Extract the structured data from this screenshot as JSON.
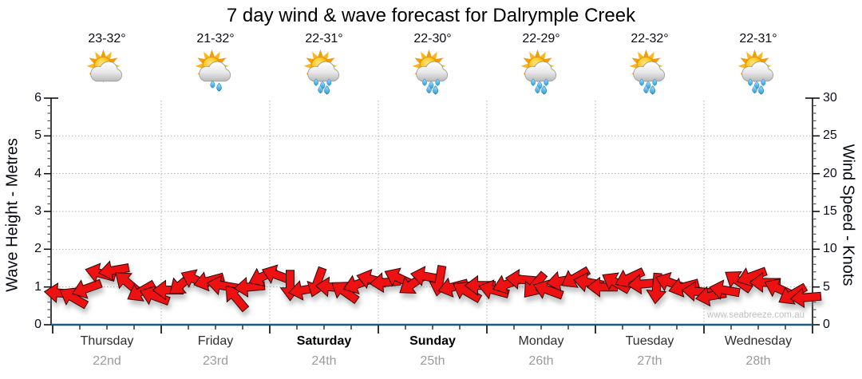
{
  "title": "7 day wind & wave forecast for Dalrymple Creek",
  "watermark": "www.seabreeze.com.au",
  "axes": {
    "left_label": "Wave Height - Metres",
    "right_label": "Wind Speed - Knots",
    "left_ticks": [
      0,
      1,
      2,
      3,
      4,
      5,
      6
    ],
    "right_ticks": [
      0,
      5,
      10,
      15,
      20,
      25,
      30
    ]
  },
  "days": [
    {
      "name": "Thursday",
      "date": "22nd",
      "temp": "23-32°",
      "icon": "partly-cloudy",
      "weekend": false
    },
    {
      "name": "Friday",
      "date": "23rd",
      "temp": "21-32°",
      "icon": "showers",
      "weekend": false
    },
    {
      "name": "Saturday",
      "date": "24th",
      "temp": "22-31°",
      "icon": "rain",
      "weekend": true
    },
    {
      "name": "Sunday",
      "date": "25th",
      "temp": "22-30°",
      "icon": "rain",
      "weekend": true
    },
    {
      "name": "Monday",
      "date": "26th",
      "temp": "22-29°",
      "icon": "rain",
      "weekend": false
    },
    {
      "name": "Tuesday",
      "date": "27th",
      "temp": "22-32°",
      "icon": "rain",
      "weekend": false
    },
    {
      "name": "Wednesday",
      "date": "28th",
      "temp": "22-31°",
      "icon": "rain",
      "weekend": false
    }
  ],
  "chart_data": {
    "type": "scatter",
    "subtype": "wind-direction-arrows",
    "title": "7 day wind & wave forecast for Dalrymple Creek",
    "categories": [
      "Thursday 22nd",
      "Friday 23rd",
      "Saturday 24th",
      "Sunday 25th",
      "Monday 26th",
      "Tuesday 27th",
      "Wednesday 28th"
    ],
    "points_per_day": 8,
    "ylabel_left": "Wave Height - Metres",
    "ylabel_right": "Wind Speed - Knots",
    "ylim_left_metres": [
      0,
      6
    ],
    "ylim_right_knots": [
      0,
      30
    ],
    "grid": "dotted, horizontal at 1-5 m and vertical at day boundaries",
    "legend": "none",
    "series": [
      {
        "name": "Wind speed (knots)",
        "values": [
          4.2,
          3.6,
          4.8,
          6.8,
          7.2,
          5.6,
          4.4,
          3.8,
          4.6,
          5.4,
          6.0,
          5.8,
          5.2,
          3.6,
          5.0,
          6.4,
          6.6,
          5.2,
          4.6,
          5.6,
          5.0,
          4.4,
          5.4,
          6.0,
          5.6,
          6.2,
          5.4,
          6.4,
          5.8,
          5.0,
          4.4,
          5.2,
          4.6,
          5.4,
          6.0,
          5.2,
          4.6,
          5.8,
          6.2,
          5.6,
          5.0,
          5.6,
          6.2,
          5.4,
          4.8,
          5.6,
          5.0,
          4.4,
          3.8,
          4.6,
          5.8,
          6.4,
          5.6,
          4.8,
          4.0,
          3.6
        ]
      },
      {
        "name": "Wind direction (screen deg, 0=east)",
        "values": [
          185,
          210,
          160,
          195,
          170,
          220,
          150,
          200,
          180,
          140,
          205,
          165,
          190,
          230,
          175,
          155,
          200,
          90,
          170,
          110,
          185,
          215,
          160,
          195,
          175,
          205,
          145,
          190,
          100,
          165,
          210,
          180,
          195,
          160,
          185,
          130,
          200,
          170,
          150,
          190,
          180,
          210,
          155,
          175,
          95,
          200,
          165,
          185,
          170,
          190,
          215,
          160,
          180,
          205,
          150,
          175
        ]
      }
    ],
    "colors": {
      "arrow_fill": "#ee1111",
      "arrow_outline": "#33060a",
      "baseline": "#1d5a82",
      "grid": "#aeaeae",
      "axis": "#000000",
      "day_label": "#2e2e2e",
      "date_label": "#9b9b9b",
      "watermark": "#c0c0c0"
    }
  }
}
